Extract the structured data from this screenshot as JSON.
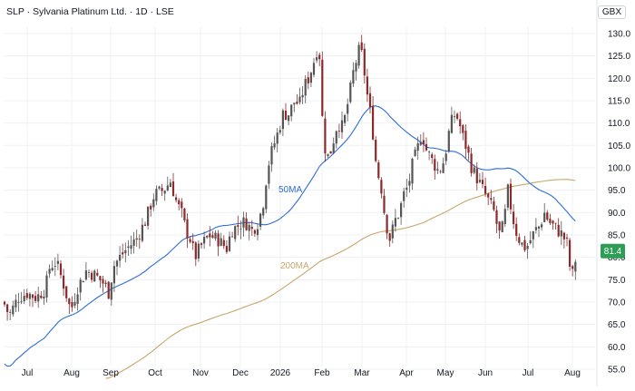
{
  "header": {
    "title": "SLP · Sylvania Platinum Ltd. · 1D · LSE",
    "currency": "GBX"
  },
  "colors": {
    "up": "#555555",
    "down": "#8b2a2a",
    "ma50": "#2d6ed8",
    "ma200": "#c9a66b",
    "price_badge": "#2e9d55",
    "grid": "#eef0f3",
    "axis_text": "#131722"
  },
  "chart_data": {
    "type": "line",
    "subtype": "candlestick",
    "x_tick_labels": [
      "Jul",
      "Aug",
      "Sep",
      "Oct",
      "Nov",
      "Dec",
      "2026",
      "Feb",
      "Mar",
      "Apr",
      "May",
      "Jun",
      "Jul",
      "Aug"
    ],
    "y_tick_labels": [
      "55.0",
      "60.0",
      "65.0",
      "70.0",
      "75.0",
      "80.0",
      "85.0",
      "90.0",
      "95.0",
      "100.0",
      "105.0",
      "110.0",
      "115.0",
      "120.0",
      "125.0",
      "130.0"
    ],
    "ylim": [
      55,
      131
    ],
    "y_axis_side": "right",
    "grid": true,
    "last_price_label": "81.4",
    "series": [
      {
        "name": "price",
        "anchor_points": [
          [
            0,
            72
          ],
          [
            10,
            67
          ],
          [
            20,
            71
          ],
          [
            30,
            72
          ],
          [
            40,
            71
          ],
          [
            50,
            73
          ],
          [
            55,
            78
          ],
          [
            62,
            79
          ],
          [
            70,
            74
          ],
          [
            78,
            68
          ],
          [
            85,
            73
          ],
          [
            95,
            77
          ],
          [
            105,
            76
          ],
          [
            115,
            74
          ],
          [
            120,
            72
          ],
          [
            125,
            78
          ],
          [
            132,
            80
          ],
          [
            140,
            82
          ],
          [
            150,
            84
          ],
          [
            160,
            88
          ],
          [
            170,
            94
          ],
          [
            180,
            95
          ],
          [
            188,
            97
          ],
          [
            195,
            92
          ],
          [
            200,
            90
          ],
          [
            205,
            86
          ],
          [
            210,
            84
          ],
          [
            215,
            80
          ],
          [
            220,
            82
          ],
          [
            230,
            85
          ],
          [
            240,
            84
          ],
          [
            250,
            82
          ],
          [
            255,
            86
          ],
          [
            262,
            87
          ],
          [
            270,
            88
          ],
          [
            278,
            86
          ],
          [
            285,
            88
          ],
          [
            290,
            92
          ],
          [
            295,
            100
          ],
          [
            300,
            104
          ],
          [
            305,
            107
          ],
          [
            312,
            112
          ],
          [
            318,
            112
          ],
          [
            325,
            115
          ],
          [
            330,
            114
          ],
          [
            335,
            118
          ],
          [
            340,
            120
          ],
          [
            345,
            123
          ],
          [
            350,
            127
          ],
          [
            352,
            126
          ],
          [
            356,
            108
          ],
          [
            360,
            102
          ],
          [
            365,
            104
          ],
          [
            372,
            110
          ],
          [
            378,
            109
          ],
          [
            385,
            116
          ],
          [
            390,
            122
          ],
          [
            397,
            127
          ],
          [
            400,
            124
          ],
          [
            405,
            116
          ],
          [
            410,
            110
          ],
          [
            415,
            100
          ],
          [
            420,
            96
          ],
          [
            425,
            88
          ],
          [
            430,
            84
          ],
          [
            435,
            88
          ],
          [
            440,
            90
          ],
          [
            445,
            94
          ],
          [
            450,
            96
          ],
          [
            455,
            101
          ],
          [
            460,
            104
          ],
          [
            465,
            108
          ],
          [
            470,
            104
          ],
          [
            478,
            101
          ],
          [
            484,
            99
          ],
          [
            490,
            102
          ],
          [
            495,
            108
          ],
          [
            500,
            112
          ],
          [
            505,
            111
          ],
          [
            510,
            107
          ],
          [
            515,
            104
          ],
          [
            520,
            100
          ],
          [
            525,
            98
          ],
          [
            530,
            96
          ],
          [
            535,
            94
          ],
          [
            540,
            92
          ],
          [
            545,
            90
          ],
          [
            550,
            85
          ],
          [
            555,
            87
          ],
          [
            560,
            95
          ],
          [
            565,
            89
          ],
          [
            570,
            85
          ],
          [
            575,
            83
          ],
          [
            580,
            82
          ],
          [
            585,
            84
          ],
          [
            590,
            86
          ],
          [
            595,
            87
          ],
          [
            600,
            90
          ],
          [
            605,
            88
          ],
          [
            610,
            87
          ],
          [
            615,
            86
          ],
          [
            620,
            85
          ],
          [
            625,
            83
          ],
          [
            630,
            75
          ],
          [
            633,
            78
          ],
          [
            636,
            81.4
          ]
        ]
      },
      {
        "name": "50MA",
        "label": "50MA"
      },
      {
        "name": "200MA",
        "label": "200MA"
      }
    ]
  }
}
